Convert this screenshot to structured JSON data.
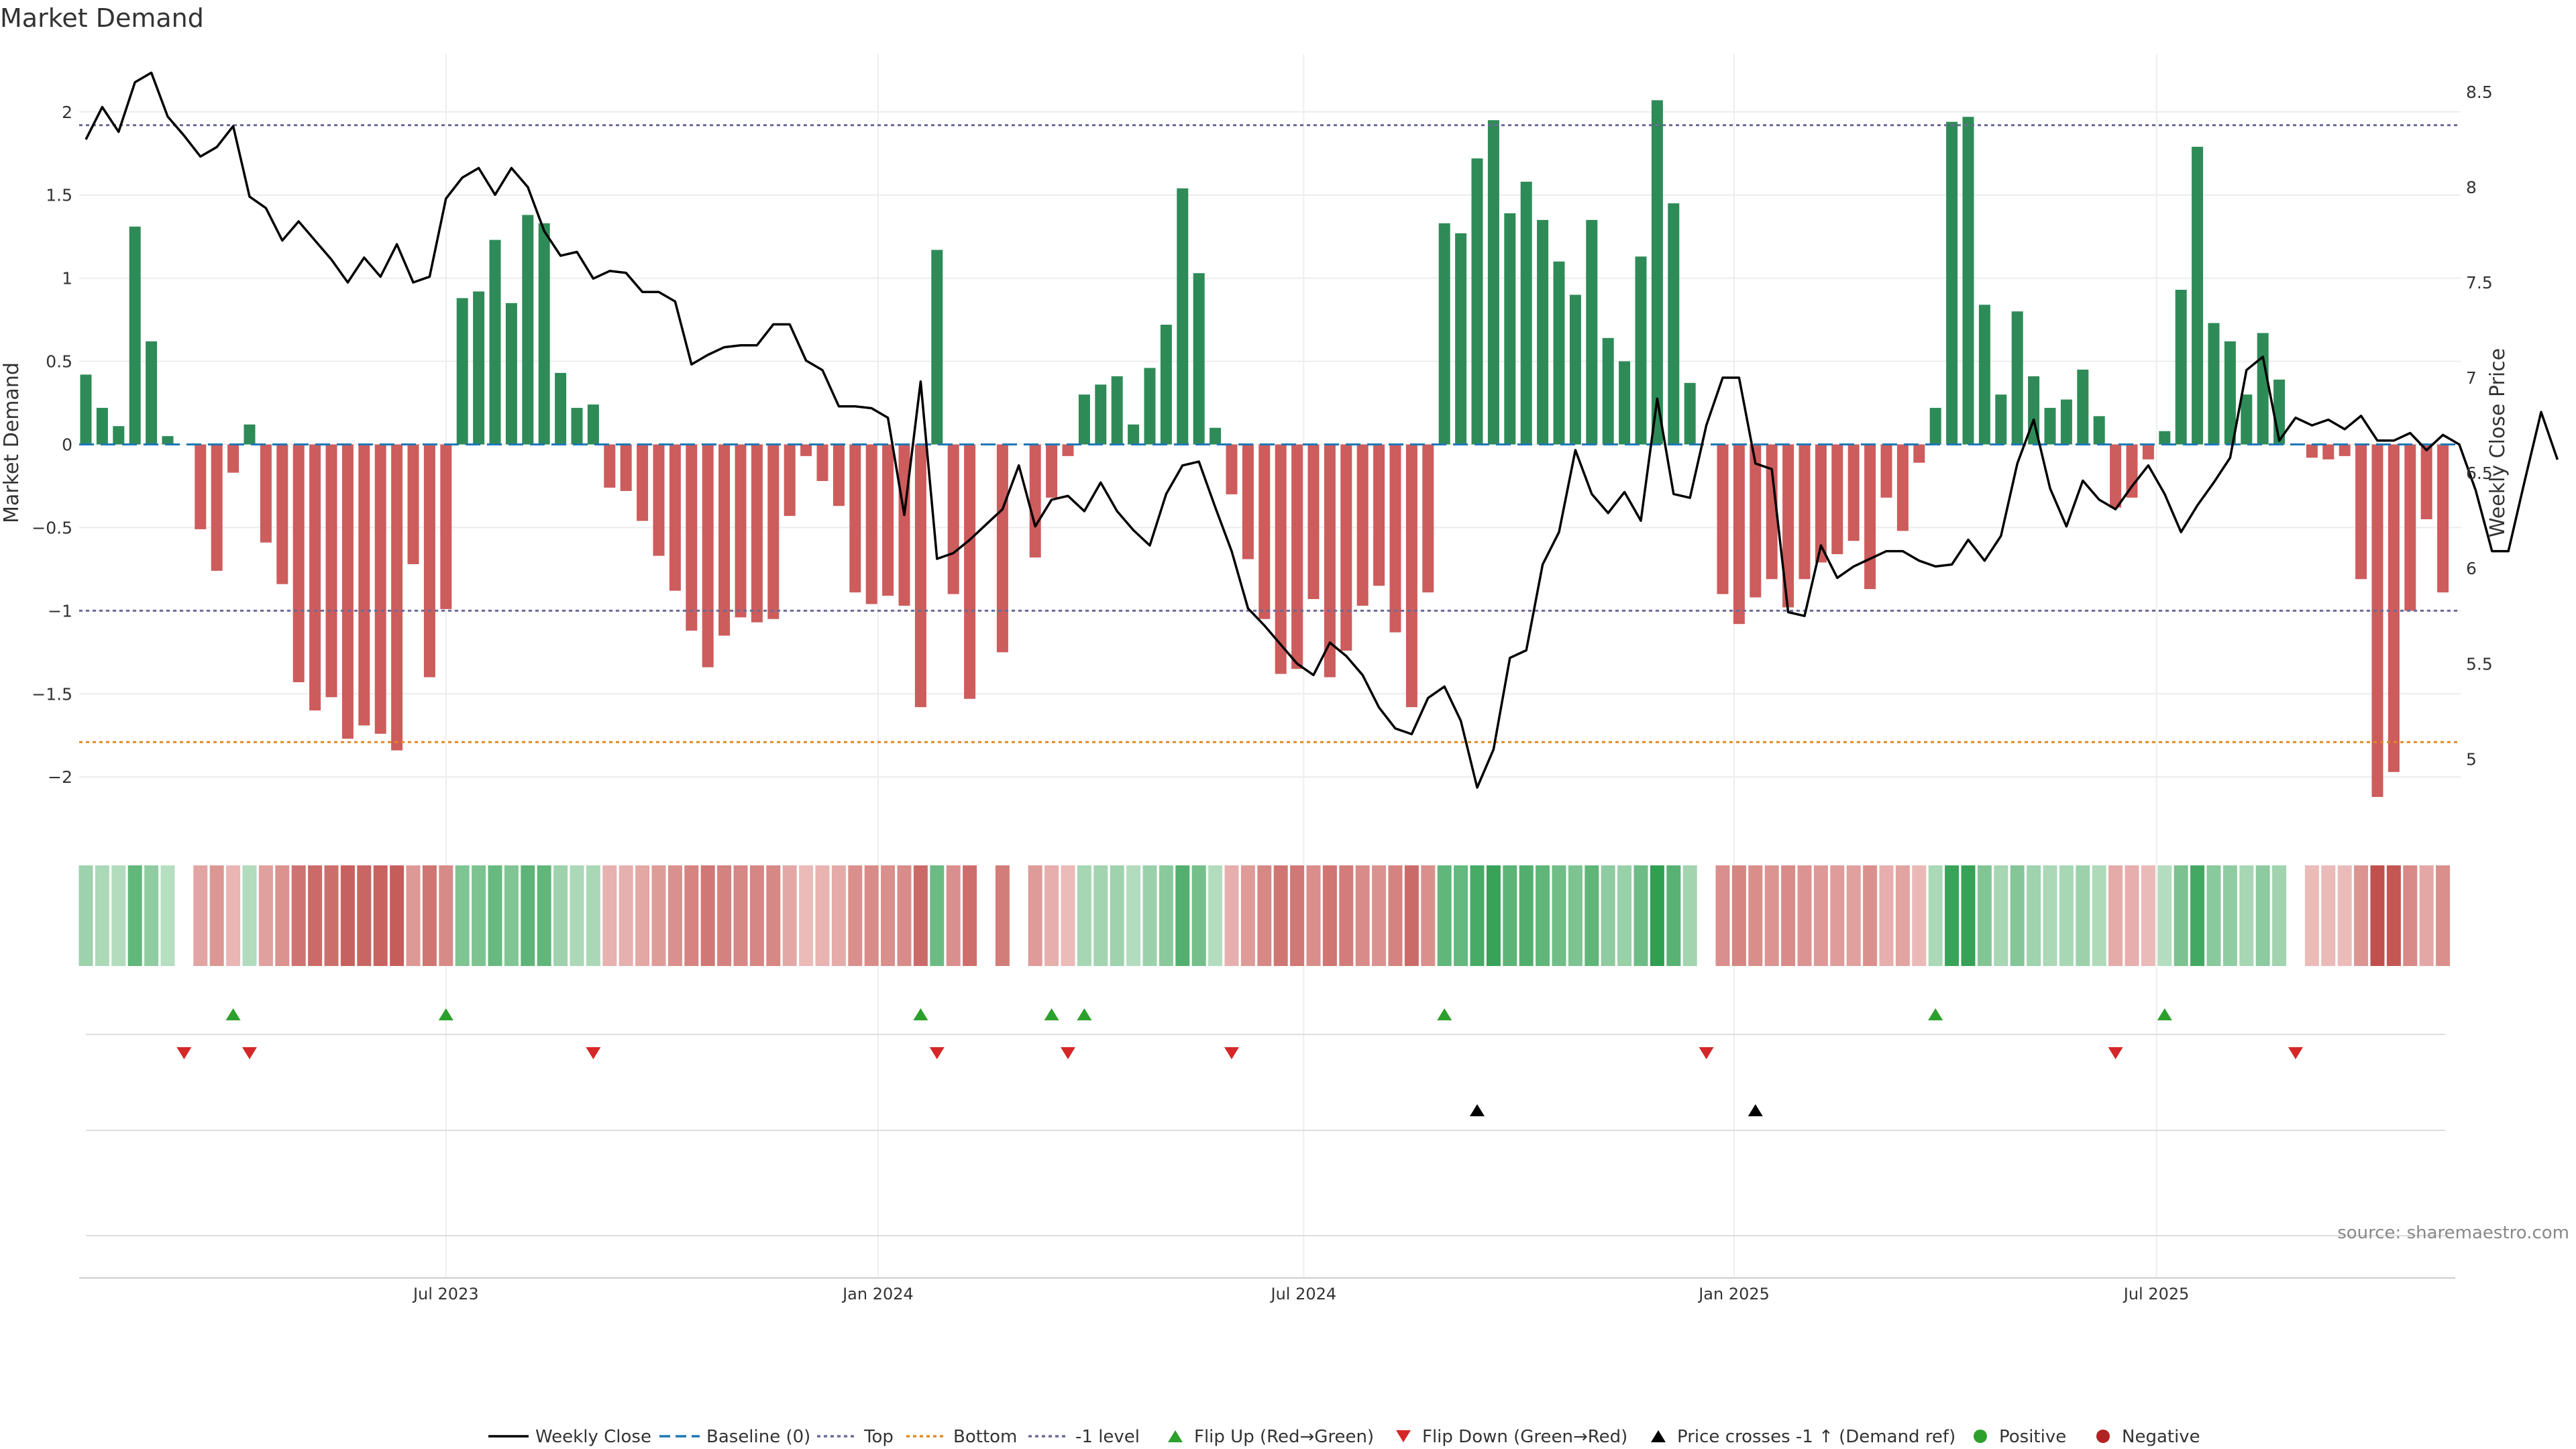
{
  "chart_data": {
    "type": "bar+line",
    "title": "Market Demand",
    "ylabel_left": "Market Demand",
    "ylabel_right": "Weekly Close Price",
    "ylim_left": [
      -2.35,
      2.35
    ],
    "ylim_right": [
      4.6,
      8.7
    ],
    "yticks_left": [
      2,
      1.5,
      1,
      0.5,
      0,
      -0.5,
      -1,
      -1.5,
      -2
    ],
    "ytick_labels_left": [
      "2",
      "1.5",
      "1",
      "0.5",
      "0",
      "−0.5",
      "−1",
      "−1.5",
      "−2"
    ],
    "yticks_right": [
      8.5,
      8,
      7.5,
      7,
      6.5,
      6,
      5.5,
      5
    ],
    "ytick_labels_right": [
      "8.5",
      "8",
      "7.5",
      "7",
      "6.5",
      "6",
      "5.5",
      "5"
    ],
    "x_ticks": [
      {
        "label": "Jul 2023",
        "index": 22
      },
      {
        "label": "Jan 2024",
        "index": 48.4
      },
      {
        "label": "Jul 2024",
        "index": 74.4
      },
      {
        "label": "Jan 2025",
        "index": 100.7
      },
      {
        "label": "Jul 2025",
        "index": 126.5
      }
    ],
    "reference_lines": {
      "top": 1.92,
      "bottom": -1.79,
      "minus_one": -1.0,
      "baseline": 0
    },
    "demand": [
      0.42,
      0.22,
      0.11,
      1.31,
      0.62,
      0.05,
      0,
      -0.51,
      -0.76,
      -0.17,
      0.12,
      -0.59,
      -0.84,
      -1.43,
      -1.6,
      -1.52,
      -1.77,
      -1.69,
      -1.74,
      -1.84,
      -0.72,
      -1.4,
      -0.99,
      0.88,
      0.92,
      1.23,
      0.85,
      1.38,
      1.33,
      0.43,
      0.22,
      0.24,
      -0.26,
      -0.28,
      -0.46,
      -0.67,
      -0.88,
      -1.12,
      -1.34,
      -1.15,
      -1.04,
      -1.07,
      -1.05,
      -0.43,
      -0.07,
      -0.22,
      -0.37,
      -0.89,
      -0.96,
      -0.91,
      -0.97,
      -1.58,
      1.17,
      -0.9,
      -1.53,
      0,
      -1.25,
      0,
      -0.68,
      -0.32,
      -0.07,
      0.3,
      0.36,
      0.41,
      0.12,
      0.46,
      0.72,
      1.54,
      1.03,
      0.1,
      -0.3,
      -0.69,
      -1.05,
      -1.38,
      -1.35,
      -0.93,
      -1.4,
      -1.24,
      -0.97,
      -0.85,
      -1.13,
      -1.58,
      -0.89,
      1.33,
      1.27,
      1.72,
      1.95,
      1.39,
      1.58,
      1.35,
      1.1,
      0.9,
      1.35,
      0.64,
      0.5,
      1.13,
      2.07,
      1.45,
      0.37,
      0,
      -0.9,
      -1.08,
      -0.92,
      -0.81,
      -0.98,
      -0.81,
      -0.71,
      -0.66,
      -0.58,
      -0.87,
      -0.32,
      -0.52,
      -0.11,
      0.22,
      1.94,
      1.97,
      0.84,
      0.3,
      0.8,
      0.41,
      0.22,
      0.27,
      0.45,
      0.17,
      -0.38,
      -0.32,
      -0.09,
      0.08,
      0.93,
      1.79,
      0.73,
      0.62,
      0.3,
      0.67,
      0.39,
      0,
      -0.08,
      -0.09,
      -0.07,
      -0.81,
      -2.12,
      -1.97,
      -1.0,
      -0.45,
      -0.89
    ],
    "weekly_close": [
      8.25,
      8.42,
      8.29,
      8.55,
      8.6,
      8.37,
      8.27,
      8.16,
      8.21,
      8.32,
      7.95,
      7.89,
      7.72,
      7.82,
      7.72,
      7.62,
      7.5,
      7.63,
      7.53,
      7.7,
      7.5,
      7.53,
      7.94,
      8.05,
      8.1,
      7.96,
      8.1,
      8.0,
      7.77,
      7.64,
      7.66,
      7.52,
      7.56,
      7.55,
      7.45,
      7.45,
      7.4,
      7.07,
      7.12,
      7.16,
      7.17,
      7.17,
      7.28,
      7.28,
      7.09,
      7.04,
      6.85,
      6.85,
      6.84,
      6.79,
      6.28,
      6.98,
      6.05,
      6.08,
      6.15,
      6.23,
      6.31,
      6.54,
      6.22,
      6.36,
      6.38,
      6.3,
      6.45,
      6.3,
      6.2,
      6.12,
      6.39,
      6.54,
      6.56,
      6.32,
      6.09,
      5.79,
      5.7,
      5.6,
      5.5,
      5.44,
      5.61,
      5.54,
      5.44,
      5.27,
      5.16,
      5.13,
      5.32,
      5.38,
      5.2,
      4.85,
      5.05,
      5.53,
      5.57,
      6.02,
      6.19,
      6.62,
      6.39,
      6.29,
      6.4,
      6.25,
      6.89,
      6.39,
      6.37,
      6.75,
      7.0,
      7.0,
      6.55,
      6.52,
      5.77,
      5.75,
      6.12,
      5.95,
      6.01,
      6.05,
      6.09,
      6.09,
      6.04,
      6.01,
      6.02,
      6.15,
      6.04,
      6.17,
      6.55,
      6.78,
      6.42,
      6.22,
      6.46,
      6.36,
      6.31,
      6.43,
      6.54,
      6.39,
      6.19,
      6.33,
      6.45,
      6.58,
      7.04,
      7.11,
      6.67,
      6.79,
      6.75,
      6.78,
      6.73,
      6.8,
      6.67,
      6.67,
      6.71,
      6.62,
      6.7,
      6.65,
      6.41,
      6.09,
      6.09,
      6.46,
      6.82,
      6.57
    ],
    "flip_up_indices": [
      9,
      22,
      51,
      59,
      61,
      83,
      113,
      127
    ],
    "flip_down_indices": [
      6,
      10,
      31,
      52,
      60,
      70,
      99,
      124,
      135
    ],
    "price_cross_indices": [
      85,
      102
    ],
    "legend": [
      "Weekly Close",
      "Baseline (0)",
      "Top",
      "Bottom",
      "-1 level",
      "Flip Up (Red→Green)",
      "Flip Down (Green→Red)",
      "Price crosses -1 ↑ (Demand ref)",
      "Positive",
      "Negative"
    ]
  },
  "source": "source: sharemaestro.com",
  "colors": {
    "positive_bar": "#2e8b57",
    "negative_bar": "#cd5c5c",
    "line": "#000000",
    "baseline": "#1f77b4",
    "top_line": "#6a6a9a",
    "bottom_line": "#e08a1e",
    "flip_up": "#2ca02c",
    "flip_down": "#d62728",
    "positive_dot": "#2ca02c",
    "negative_dot": "#b22222"
  }
}
